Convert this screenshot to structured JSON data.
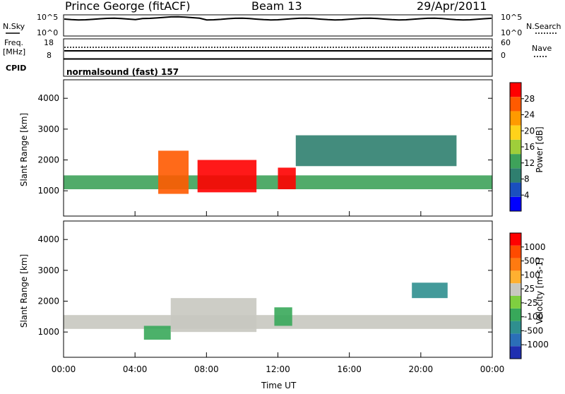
{
  "header": {
    "station": "Prince George (fitACF)",
    "beam": "Beam 13",
    "date": "29/Apr/2011"
  },
  "top_panels": {
    "nsky_label": "N.Sky",
    "nsky_ticks": [
      "10^5",
      "10^0"
    ],
    "nsearch_label": "N.Search",
    "freq_label_1": "Freq.",
    "freq_label_2": "[MHz]",
    "freq_ticks": [
      "18",
      "8"
    ],
    "nave_ticks": [
      "60",
      "0"
    ],
    "nave_label": "Nave",
    "cpid_label": "CPID",
    "cpid_value": "normalsound (fast) 157"
  },
  "power_colorbar": {
    "title": "Power [dB]",
    "ticks": [
      "28",
      "24",
      "20",
      "16",
      "12",
      "8",
      "4"
    ],
    "colors": [
      "#0000ff",
      "#1a4fbf",
      "#2f7f6f",
      "#3ea25a",
      "#9fce3a",
      "#ffd21a",
      "#ff9a00",
      "#ff5a00",
      "#ff0000"
    ]
  },
  "velocity_colorbar": {
    "title": "Velocity [m s-1]",
    "ticks": [
      "1000",
      "500",
      "100",
      "25",
      "-25",
      "-100",
      "-500",
      "-1000"
    ],
    "colors": [
      "#1f2fb0",
      "#2b6fb8",
      "#2f8f8f",
      "#38a85a",
      "#7fcf40",
      "#c8c8c0",
      "#ffb030",
      "#ff7a10",
      "#ff4a00",
      "#ff0000"
    ]
  },
  "axes": {
    "ylabel": "Slant Range [km]",
    "xlabel": "Time UT",
    "yticks": [
      "4000",
      "3000",
      "2000",
      "1000"
    ],
    "xticks": [
      "00:00",
      "04:00",
      "08:00",
      "12:00",
      "16:00",
      "20:00",
      "00:00"
    ]
  },
  "chart_data": [
    {
      "type": "heatmap",
      "title": "",
      "quantity": "Power [dB]",
      "xlabel": "",
      "ylabel": "Slant Range [km]",
      "xlim": [
        0,
        24
      ],
      "ylim": [
        180,
        4600
      ],
      "color_range": [
        0,
        30
      ],
      "features": [
        {
          "t_start": 0.0,
          "t_end": 24.0,
          "range_start": 1050,
          "range_end": 1500,
          "power": 12
        },
        {
          "t_start": 5.3,
          "t_end": 7.0,
          "range_start": 900,
          "range_end": 2300,
          "power": 24
        },
        {
          "t_start": 7.5,
          "t_end": 10.8,
          "range_start": 950,
          "range_end": 2000,
          "power": 30
        },
        {
          "t_start": 12.0,
          "t_end": 13.0,
          "range_start": 1050,
          "range_end": 1750,
          "power": 30
        },
        {
          "t_start": 13.0,
          "t_end": 22.0,
          "range_start": 1800,
          "range_end": 2800,
          "power": 8
        }
      ]
    },
    {
      "type": "heatmap",
      "title": "",
      "quantity": "Velocity [m s-1]",
      "xlabel": "Time UT",
      "ylabel": "Slant Range [km]",
      "xlim": [
        0,
        24
      ],
      "ylim": [
        180,
        4600
      ],
      "color_range": [
        -1000,
        1000
      ],
      "features": [
        {
          "t_start": 0.0,
          "t_end": 24.0,
          "range_start": 1100,
          "range_end": 1550,
          "velocity": 0
        },
        {
          "t_start": 4.5,
          "t_end": 6.0,
          "range_start": 750,
          "range_end": 1200,
          "velocity": -300
        },
        {
          "t_start": 6.0,
          "t_end": 10.8,
          "range_start": 1000,
          "range_end": 2100,
          "velocity": 100
        },
        {
          "t_start": 11.8,
          "t_end": 12.8,
          "range_start": 1200,
          "range_end": 1800,
          "velocity": -300
        },
        {
          "t_start": 19.5,
          "t_end": 21.5,
          "range_start": 2100,
          "range_end": 2600,
          "velocity": -500
        }
      ]
    }
  ]
}
